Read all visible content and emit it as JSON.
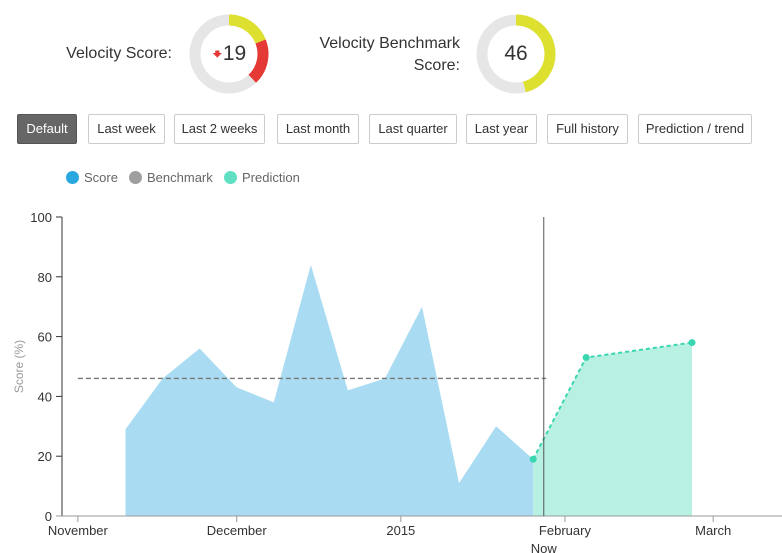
{
  "velocity": {
    "label_line1": "Velocity Score:",
    "value": "19",
    "trend": "down",
    "color_filled": "#e53935",
    "color_warn": "#dde02e",
    "color_track": "#e6e6e6",
    "fraction": 0.19
  },
  "benchmark": {
    "label_line1": "Velocity Benchmark",
    "label_line2": "Score:",
    "value": "46",
    "color_filled": "#dde02e",
    "color_track": "#e6e6e6",
    "fraction": 0.46
  },
  "ranges": {
    "buttons": [
      "Default",
      "Last week",
      "Last 2 weeks",
      "Last month",
      "Last quarter",
      "Last year",
      "Full history",
      "Prediction / trend"
    ],
    "active": "Default"
  },
  "legend": {
    "items": [
      {
        "label": "Score",
        "color": "#29a8e0"
      },
      {
        "label": "Benchmark",
        "color": "#9e9e9e"
      },
      {
        "label": "Prediction",
        "color": "#5fe0c3"
      }
    ]
  },
  "chart_data": {
    "type": "area",
    "title": "",
    "xlabel": "",
    "ylabel": "Score (%)",
    "ylim": [
      0,
      100
    ],
    "yticks": [
      0,
      20,
      40,
      60,
      80,
      100
    ],
    "x_ticks": [
      {
        "label": "November",
        "date": "2014-11-01"
      },
      {
        "label": "December",
        "date": "2014-12-01"
      },
      {
        "label": "2015",
        "date": "2015-01-01"
      },
      {
        "label": "February",
        "date": "2015-02-01"
      },
      {
        "label": "March",
        "date": "2015-03-01"
      }
    ],
    "now_label": "Now",
    "now_date": "2015-01-28",
    "x_range": [
      "2014-10-29",
      "2015-03-14"
    ],
    "series": [
      {
        "name": "Score",
        "color": "#a9dcf2",
        "points": [
          {
            "date": "2014-11-10",
            "value": 29
          },
          {
            "date": "2014-11-17",
            "value": 46
          },
          {
            "date": "2014-11-24",
            "value": 56
          },
          {
            "date": "2014-12-01",
            "value": 43
          },
          {
            "date": "2014-12-08",
            "value": 38
          },
          {
            "date": "2014-12-15",
            "value": 84
          },
          {
            "date": "2014-12-22",
            "value": 42
          },
          {
            "date": "2014-12-29",
            "value": 46
          },
          {
            "date": "2015-01-05",
            "value": 70
          },
          {
            "date": "2015-01-12",
            "value": 11
          },
          {
            "date": "2015-01-19",
            "value": 30
          },
          {
            "date": "2015-01-26",
            "value": 19
          }
        ]
      },
      {
        "name": "Benchmark",
        "color": "#777777",
        "value": 46,
        "from": "2014-11-01",
        "to": "2015-01-26"
      },
      {
        "name": "Prediction",
        "color": "#b8f0e2",
        "line_color": "#3ad6b0",
        "points": [
          {
            "date": "2015-01-26",
            "value": 19
          },
          {
            "date": "2015-02-05",
            "value": 53
          },
          {
            "date": "2015-02-25",
            "value": 58
          }
        ]
      }
    ]
  }
}
